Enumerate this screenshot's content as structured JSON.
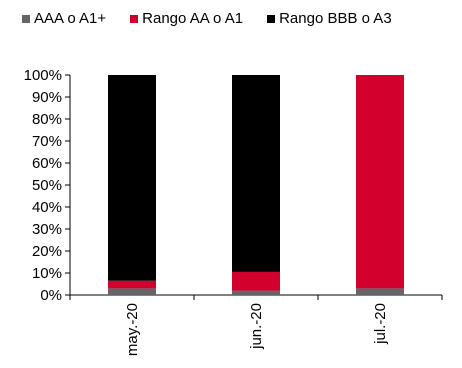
{
  "chart_data": {
    "type": "bar",
    "stacked": true,
    "categories": [
      "may.-20",
      "jun.-20",
      "jul.-20"
    ],
    "series": [
      {
        "name": "AAA o A1+",
        "color": "#646469",
        "values": [
          3,
          2,
          3
        ]
      },
      {
        "name": "Rango AA o A1",
        "color": "#D2002D",
        "values": [
          3.5,
          8.5,
          97
        ]
      },
      {
        "name": "Rango BBB o A3",
        "color": "#000000",
        "values": [
          93.5,
          89.5,
          0
        ]
      }
    ],
    "ylim": [
      0,
      100
    ],
    "yticks": [
      "0%",
      "10%",
      "20%",
      "30%",
      "40%",
      "50%",
      "60%",
      "70%",
      "80%",
      "90%",
      "100%"
    ],
    "legend_position": "top",
    "grid": false
  }
}
